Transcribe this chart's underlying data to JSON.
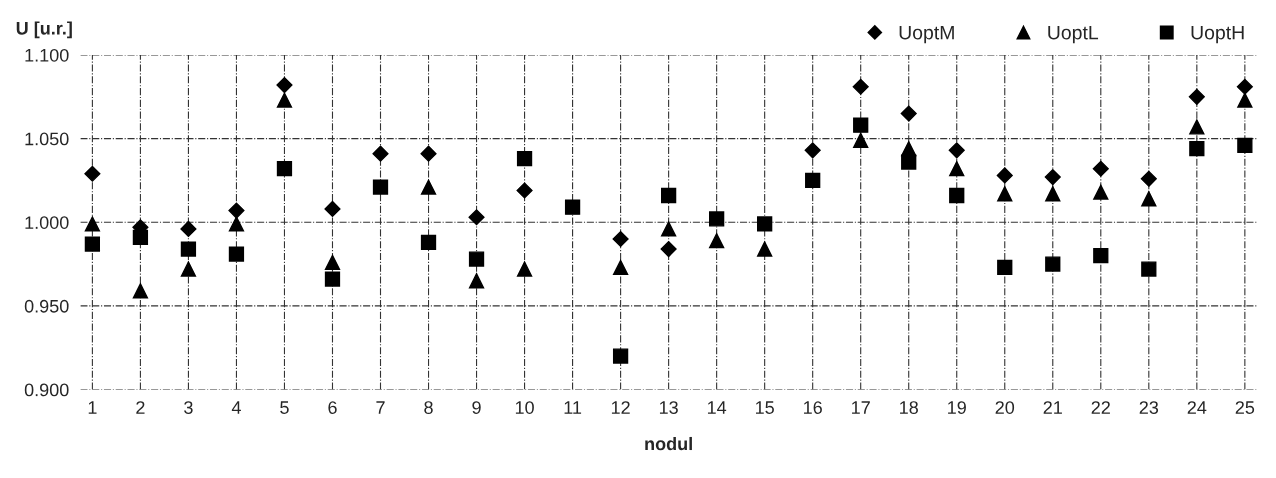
{
  "chart_data": {
    "type": "scatter",
    "ylabel": "U [u.r.]",
    "xlabel": "nodul",
    "categories": [
      "1",
      "2",
      "3",
      "4",
      "5",
      "6",
      "7",
      "8",
      "9",
      "10",
      "11",
      "12",
      "13",
      "14",
      "15",
      "16",
      "17",
      "18",
      "19",
      "20",
      "21",
      "22",
      "23",
      "24",
      "25"
    ],
    "series": [
      {
        "name": "UoptM",
        "color": "#000000",
        "marker": "diamond",
        "values": [
          1.029,
          0.997,
          0.996,
          1.007,
          1.082,
          1.008,
          1.041,
          1.041,
          1.003,
          1.019,
          null,
          0.99,
          0.984,
          null,
          null,
          1.043,
          1.081,
          1.065,
          1.043,
          1.028,
          1.027,
          1.032,
          1.026,
          1.075,
          1.081
        ]
      },
      {
        "name": "UoptL",
        "color": "#000000",
        "marker": "triangle",
        "values": [
          0.999,
          0.959,
          0.972,
          0.999,
          1.073,
          0.976,
          null,
          1.021,
          0.965,
          0.972,
          null,
          0.973,
          0.996,
          0.989,
          0.984,
          null,
          1.049,
          1.044,
          1.032,
          1.017,
          1.017,
          1.018,
          1.014,
          1.057,
          1.073
        ]
      },
      {
        "name": "UoptH",
        "color": "#000000",
        "marker": "square",
        "values": [
          0.987,
          0.991,
          0.984,
          0.981,
          1.032,
          0.966,
          1.021,
          0.988,
          0.978,
          1.038,
          1.009,
          0.92,
          1.016,
          1.002,
          0.999,
          1.025,
          1.058,
          1.036,
          1.016,
          0.973,
          0.975,
          0.98,
          0.972,
          1.044,
          1.046
        ]
      }
    ],
    "ylim": [
      0.9,
      1.1
    ],
    "yticks": [
      {
        "value": 0.9,
        "label": "0.900"
      },
      {
        "value": 0.95,
        "label": "0.950"
      },
      {
        "value": 1.0,
        "label": "1.000"
      },
      {
        "value": 1.05,
        "label": "1.050"
      },
      {
        "value": 1.1,
        "label": "1.100"
      }
    ],
    "grid": true,
    "legend": "top right"
  }
}
